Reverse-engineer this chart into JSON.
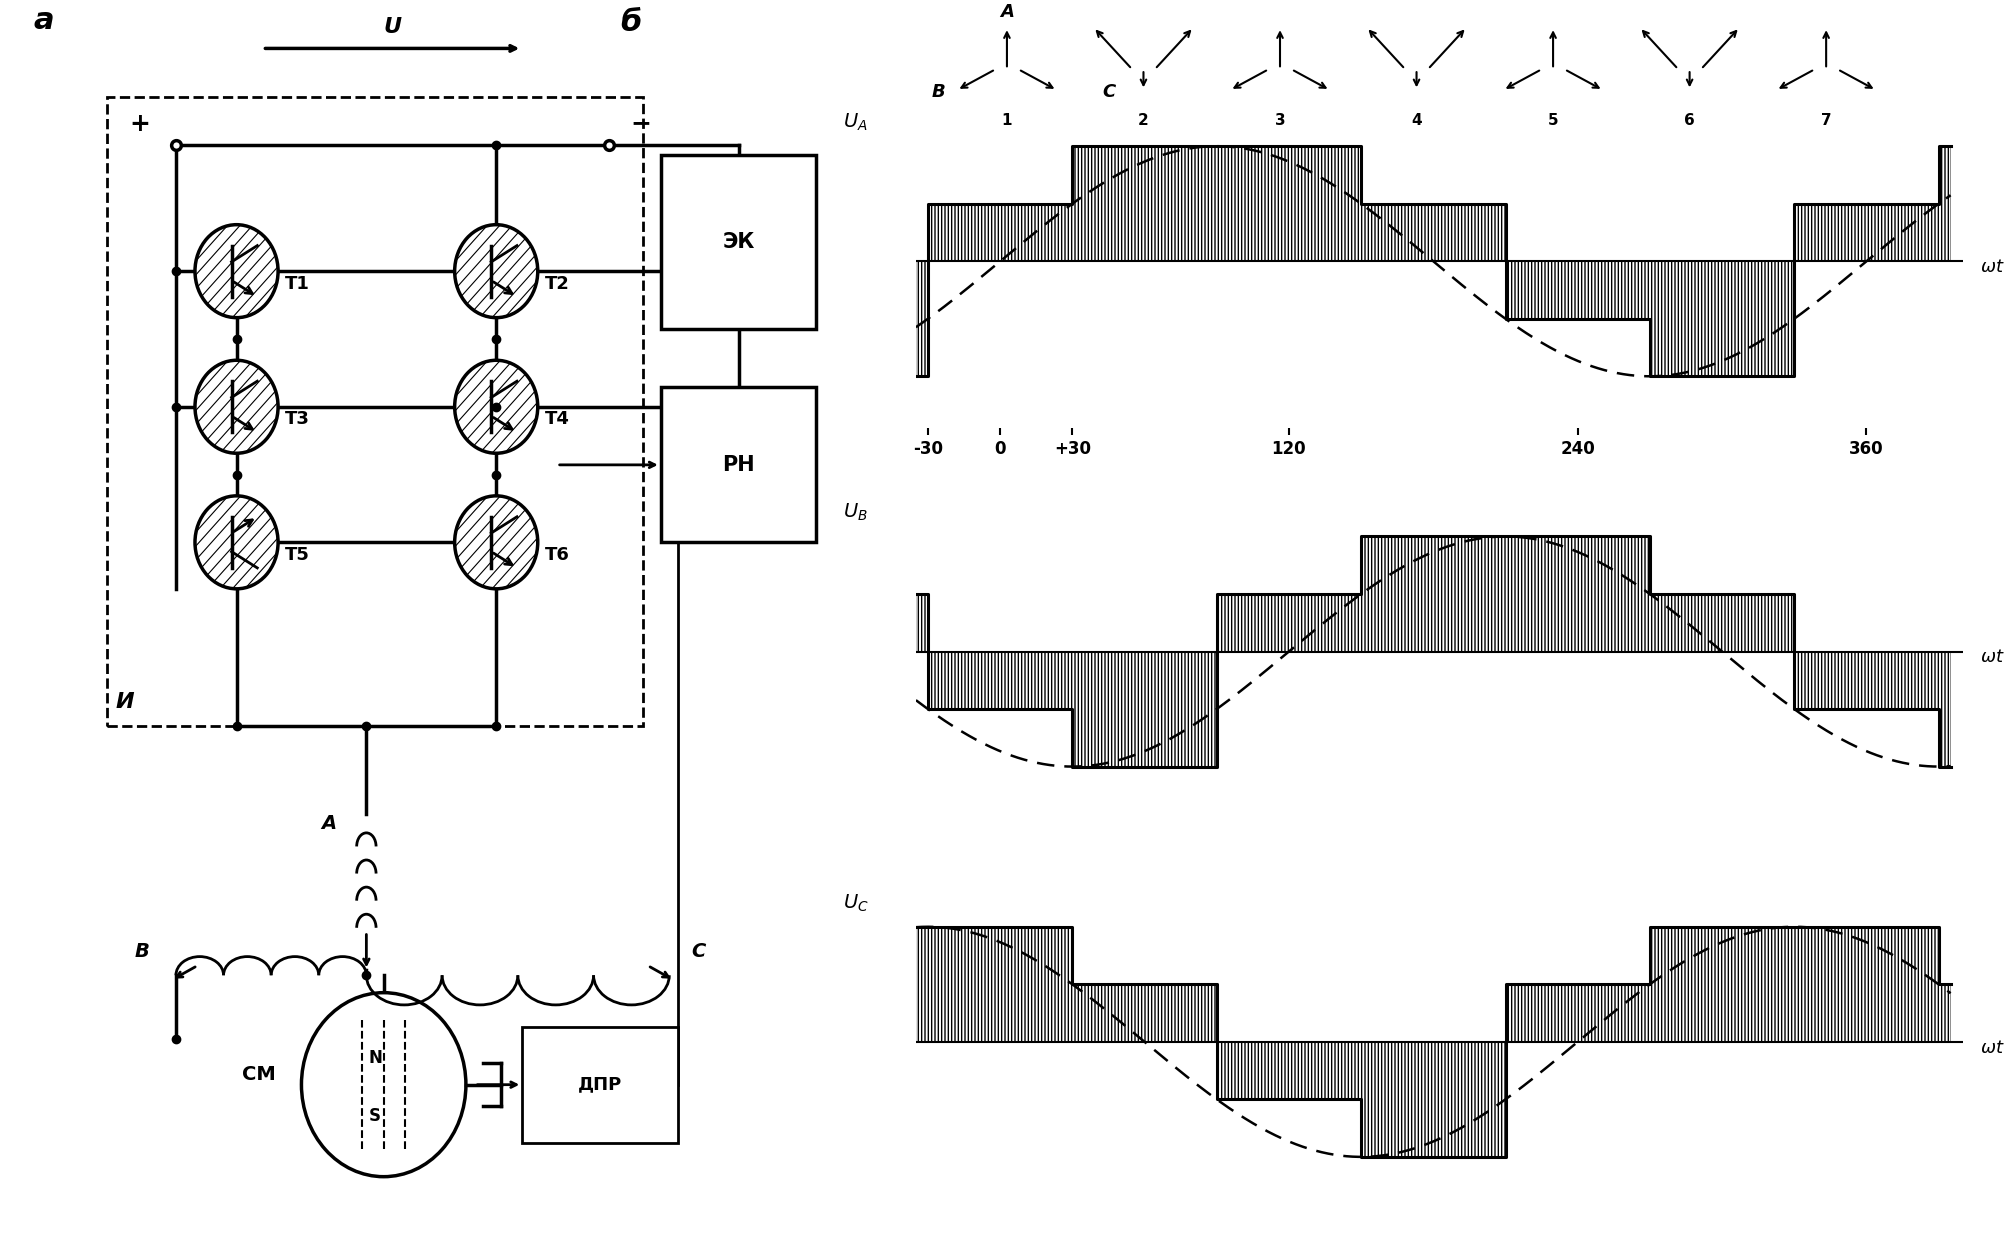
{
  "title_a": "a",
  "title_b": "б",
  "label_Ek": "ЭК",
  "label_RN": "РН",
  "label_I": "И",
  "label_SM": "СМ",
  "label_DPR": "ДПР",
  "label_T1": "T1",
  "label_T2": "T2",
  "label_T3": "T3",
  "label_T4": "T4",
  "label_T5": "T5",
  "label_T6": "T6",
  "label_A": "A",
  "label_B": "B",
  "label_C": "C",
  "label_N": "N",
  "label_S": "S",
  "label_U": "U",
  "label_wt": "ωt",
  "phasor_nums": [
    "1",
    "2",
    "3",
    "4",
    "5",
    "6",
    "7"
  ],
  "xtick_labels": [
    "-30",
    "0",
    "+30",
    "120",
    "240",
    "360"
  ],
  "xtick_vals": [
    -30,
    0,
    30,
    120,
    240,
    360
  ],
  "bg_color": "#ffffff"
}
